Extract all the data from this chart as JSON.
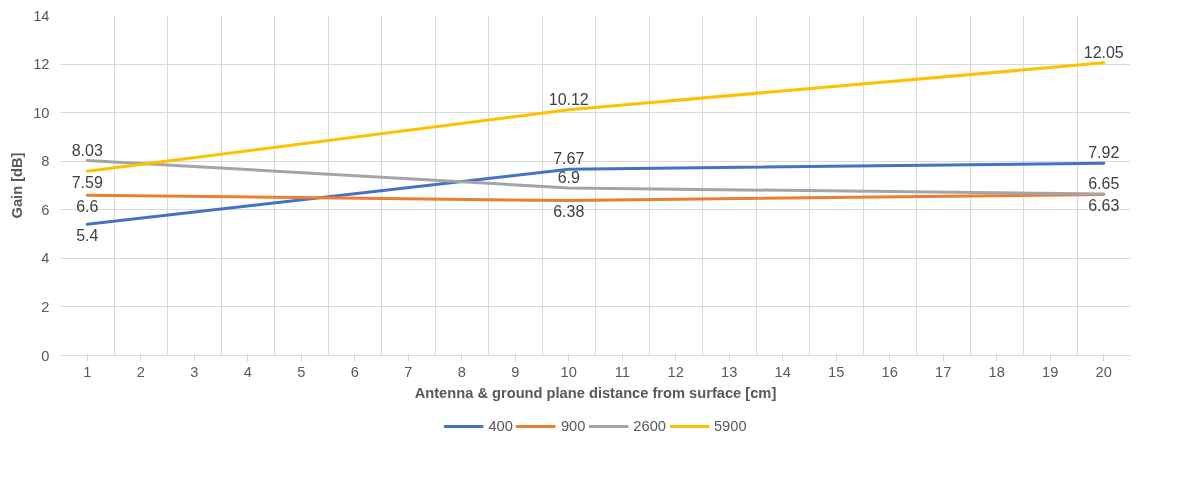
{
  "chart_data": {
    "type": "line",
    "xlabel": "Antenna & ground plane distance from surface [cm]",
    "ylabel": "Gain [dB]",
    "x": [
      1,
      10,
      20
    ],
    "xlim": [
      0.5,
      20.5
    ],
    "xticks": [
      1,
      2,
      3,
      4,
      5,
      6,
      7,
      8,
      9,
      10,
      11,
      12,
      13,
      14,
      15,
      16,
      17,
      18,
      19,
      20
    ],
    "ylim": [
      0,
      14
    ],
    "yticks": [
      0,
      2,
      4,
      6,
      8,
      10,
      12,
      14
    ],
    "series": [
      {
        "name": "400",
        "color": "#4472c4",
        "values": [
          5.4,
          7.67,
          7.92
        ]
      },
      {
        "name": "900",
        "color": "#ed7d31",
        "values": [
          6.6,
          6.38,
          6.63
        ]
      },
      {
        "name": "2600",
        "color": "#a5a5a5",
        "values": [
          8.03,
          6.9,
          6.65
        ]
      },
      {
        "name": "5900",
        "color": "#ffc000",
        "values": [
          7.59,
          10.12,
          12.05
        ]
      }
    ],
    "data_labels": true,
    "grid": true,
    "legend": "bottom",
    "marker": "none",
    "line_style": "solid"
  }
}
